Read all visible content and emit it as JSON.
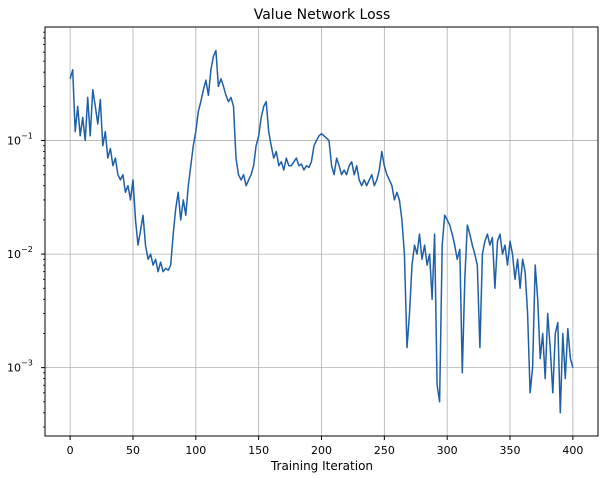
{
  "chart_data": {
    "type": "line",
    "title": "Value Network Loss",
    "xlabel": "Training Iteration",
    "ylabel": "",
    "xlim": [
      -20,
      420
    ],
    "ylim": [
      0.00025,
      1.0
    ],
    "yscale": "log",
    "grid": true,
    "legend": "none",
    "x_ticks": [
      0,
      50,
      100,
      150,
      200,
      250,
      300,
      350,
      400
    ],
    "x_tick_labels": [
      "0",
      "50",
      "100",
      "150",
      "200",
      "250",
      "300",
      "350",
      "400"
    ],
    "y_ticks": [
      0.001,
      0.01,
      0.1
    ],
    "y_tick_labels": [
      "10",
      "10",
      "10"
    ],
    "y_tick_exponents": [
      "−3",
      "−2",
      "−1"
    ],
    "series": [
      {
        "color": "#1f5fa6",
        "points": [
          [
            0,
            0.35
          ],
          [
            2,
            0.42
          ],
          [
            4,
            0.12
          ],
          [
            6,
            0.2
          ],
          [
            8,
            0.11
          ],
          [
            10,
            0.16
          ],
          [
            12,
            0.1
          ],
          [
            14,
            0.24
          ],
          [
            16,
            0.11
          ],
          [
            18,
            0.28
          ],
          [
            20,
            0.2
          ],
          [
            22,
            0.14
          ],
          [
            24,
            0.23
          ],
          [
            26,
            0.09
          ],
          [
            28,
            0.12
          ],
          [
            30,
            0.07
          ],
          [
            32,
            0.085
          ],
          [
            34,
            0.06
          ],
          [
            36,
            0.07
          ],
          [
            38,
            0.05
          ],
          [
            40,
            0.045
          ],
          [
            42,
            0.05
          ],
          [
            44,
            0.035
          ],
          [
            46,
            0.04
          ],
          [
            48,
            0.03
          ],
          [
            50,
            0.045
          ],
          [
            52,
            0.02
          ],
          [
            54,
            0.012
          ],
          [
            56,
            0.016
          ],
          [
            58,
            0.022
          ],
          [
            60,
            0.012
          ],
          [
            62,
            0.009
          ],
          [
            64,
            0.01
          ],
          [
            66,
            0.008
          ],
          [
            68,
            0.009
          ],
          [
            70,
            0.007
          ],
          [
            72,
            0.0085
          ],
          [
            74,
            0.007
          ],
          [
            76,
            0.0075
          ],
          [
            78,
            0.0072
          ],
          [
            80,
            0.008
          ],
          [
            82,
            0.015
          ],
          [
            84,
            0.025
          ],
          [
            86,
            0.035
          ],
          [
            88,
            0.02
          ],
          [
            90,
            0.03
          ],
          [
            92,
            0.022
          ],
          [
            94,
            0.04
          ],
          [
            96,
            0.06
          ],
          [
            98,
            0.09
          ],
          [
            100,
            0.12
          ],
          [
            102,
            0.18
          ],
          [
            104,
            0.22
          ],
          [
            106,
            0.28
          ],
          [
            108,
            0.34
          ],
          [
            110,
            0.25
          ],
          [
            112,
            0.42
          ],
          [
            114,
            0.55
          ],
          [
            116,
            0.62
          ],
          [
            118,
            0.3
          ],
          [
            120,
            0.35
          ],
          [
            122,
            0.3
          ],
          [
            124,
            0.25
          ],
          [
            126,
            0.22
          ],
          [
            128,
            0.24
          ],
          [
            130,
            0.2
          ],
          [
            132,
            0.07
          ],
          [
            134,
            0.05
          ],
          [
            136,
            0.045
          ],
          [
            138,
            0.05
          ],
          [
            140,
            0.04
          ],
          [
            142,
            0.045
          ],
          [
            144,
            0.05
          ],
          [
            146,
            0.06
          ],
          [
            148,
            0.09
          ],
          [
            150,
            0.11
          ],
          [
            152,
            0.16
          ],
          [
            154,
            0.2
          ],
          [
            156,
            0.22
          ],
          [
            158,
            0.12
          ],
          [
            160,
            0.09
          ],
          [
            162,
            0.07
          ],
          [
            164,
            0.08
          ],
          [
            166,
            0.06
          ],
          [
            168,
            0.065
          ],
          [
            170,
            0.055
          ],
          [
            172,
            0.07
          ],
          [
            174,
            0.06
          ],
          [
            176,
            0.06
          ],
          [
            178,
            0.065
          ],
          [
            180,
            0.07
          ],
          [
            182,
            0.06
          ],
          [
            184,
            0.062
          ],
          [
            186,
            0.055
          ],
          [
            188,
            0.06
          ],
          [
            190,
            0.058
          ],
          [
            192,
            0.065
          ],
          [
            194,
            0.09
          ],
          [
            196,
            0.1
          ],
          [
            198,
            0.11
          ],
          [
            200,
            0.115
          ],
          [
            202,
            0.11
          ],
          [
            204,
            0.105
          ],
          [
            206,
            0.1
          ],
          [
            208,
            0.06
          ],
          [
            210,
            0.05
          ],
          [
            212,
            0.07
          ],
          [
            214,
            0.06
          ],
          [
            216,
            0.05
          ],
          [
            218,
            0.055
          ],
          [
            220,
            0.05
          ],
          [
            222,
            0.06
          ],
          [
            224,
            0.065
          ],
          [
            226,
            0.05
          ],
          [
            228,
            0.06
          ],
          [
            230,
            0.045
          ],
          [
            232,
            0.04
          ],
          [
            234,
            0.045
          ],
          [
            236,
            0.04
          ],
          [
            238,
            0.045
          ],
          [
            240,
            0.05
          ],
          [
            242,
            0.04
          ],
          [
            244,
            0.045
          ],
          [
            246,
            0.055
          ],
          [
            248,
            0.08
          ],
          [
            250,
            0.06
          ],
          [
            252,
            0.05
          ],
          [
            254,
            0.045
          ],
          [
            256,
            0.04
          ],
          [
            258,
            0.03
          ],
          [
            260,
            0.035
          ],
          [
            262,
            0.03
          ],
          [
            264,
            0.02
          ],
          [
            266,
            0.01
          ],
          [
            268,
            0.0015
          ],
          [
            270,
            0.003
          ],
          [
            272,
            0.008
          ],
          [
            274,
            0.012
          ],
          [
            276,
            0.01
          ],
          [
            278,
            0.015
          ],
          [
            280,
            0.009
          ],
          [
            282,
            0.012
          ],
          [
            284,
            0.008
          ],
          [
            286,
            0.01
          ],
          [
            288,
            0.004
          ],
          [
            290,
            0.015
          ],
          [
            292,
            0.0007
          ],
          [
            294,
            0.0005
          ],
          [
            296,
            0.012
          ],
          [
            298,
            0.022
          ],
          [
            300,
            0.02
          ],
          [
            302,
            0.018
          ],
          [
            304,
            0.015
          ],
          [
            306,
            0.012
          ],
          [
            308,
            0.009
          ],
          [
            310,
            0.011
          ],
          [
            312,
            0.0009
          ],
          [
            314,
            0.006
          ],
          [
            316,
            0.018
          ],
          [
            318,
            0.015
          ],
          [
            320,
            0.012
          ],
          [
            322,
            0.01
          ],
          [
            324,
            0.008
          ],
          [
            326,
            0.0015
          ],
          [
            328,
            0.01
          ],
          [
            330,
            0.013
          ],
          [
            332,
            0.015
          ],
          [
            334,
            0.012
          ],
          [
            336,
            0.014
          ],
          [
            338,
            0.005
          ],
          [
            340,
            0.013
          ],
          [
            342,
            0.015
          ],
          [
            344,
            0.01
          ],
          [
            346,
            0.012
          ],
          [
            348,
            0.008
          ],
          [
            350,
            0.013
          ],
          [
            352,
            0.01
          ],
          [
            354,
            0.006
          ],
          [
            356,
            0.009
          ],
          [
            358,
            0.005
          ],
          [
            360,
            0.009
          ],
          [
            362,
            0.007
          ],
          [
            364,
            0.003
          ],
          [
            366,
            0.0006
          ],
          [
            368,
            0.001
          ],
          [
            370,
            0.008
          ],
          [
            372,
            0.004
          ],
          [
            374,
            0.0012
          ],
          [
            376,
            0.002
          ],
          [
            378,
            0.0008
          ],
          [
            380,
            0.003
          ],
          [
            382,
            0.0015
          ],
          [
            384,
            0.0006
          ],
          [
            386,
            0.002
          ],
          [
            388,
            0.0025
          ],
          [
            390,
            0.0004
          ],
          [
            392,
            0.002
          ],
          [
            394,
            0.0008
          ],
          [
            396,
            0.0022
          ],
          [
            398,
            0.0012
          ],
          [
            400,
            0.001
          ]
        ]
      }
    ]
  }
}
